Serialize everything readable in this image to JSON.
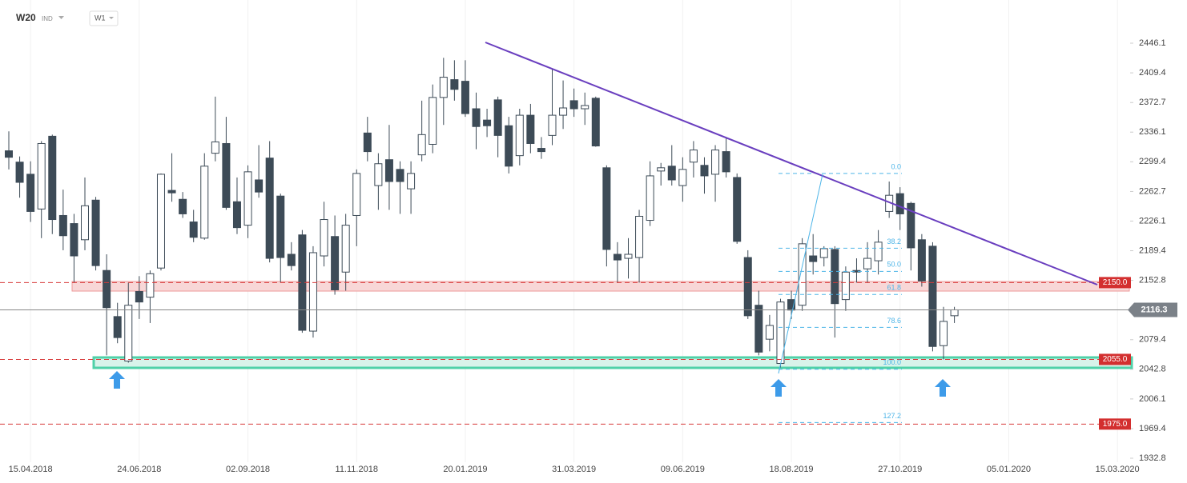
{
  "header": {
    "symbol": "W20",
    "market": "IND",
    "interval": "W1"
  },
  "chart_data": {
    "type": "candlestick",
    "categories": [
      null,
      null,
      "15.04.2018",
      null,
      null,
      null,
      null,
      null,
      null,
      null,
      null,
      null,
      "24.06.2018",
      null,
      null,
      null,
      null,
      null,
      null,
      null,
      null,
      null,
      "02.09.2018",
      null,
      null,
      null,
      null,
      null,
      null,
      null,
      null,
      null,
      "11.11.2018",
      null,
      null,
      null,
      null,
      null,
      null,
      null,
      null,
      null,
      "20.01.2019",
      null,
      null,
      null,
      null,
      null,
      null,
      null,
      null,
      null,
      "31.03.2019",
      null,
      null,
      null,
      null,
      null,
      null,
      null,
      null,
      null,
      "09.06.2019",
      null,
      null,
      null,
      null,
      null,
      null,
      null,
      null,
      null,
      "18.08.2019",
      null,
      null,
      null,
      null,
      null,
      null,
      null,
      null,
      null,
      "27.10.2019",
      null,
      null,
      null,
      null,
      null,
      null,
      null,
      null,
      null,
      "05.01.2020",
      null,
      null,
      null,
      null,
      null,
      null,
      null,
      null,
      null,
      "15.03.2020",
      null
    ],
    "open": [
      2313,
      2299,
      2284,
      2241,
      2331,
      2233,
      2223,
      2203,
      2252,
      2165,
      2108,
      2053,
      2139,
      2132,
      2168,
      2264,
      2253,
      2225,
      2205,
      2310,
      2322,
      2250,
      2221,
      2277,
      2304,
      2257,
      2185,
      2209,
      2090,
      2183,
      2207,
      2163,
      2233,
      2335,
      2270,
      2302,
      2290,
      2266,
      2308,
      2321,
      2379,
      2401,
      2399,
      2365,
      2351,
      2376,
      2344,
      2307,
      2357,
      2316,
      2332,
      2357,
      2375,
      2365,
      2378,
      2292,
      2185,
      2180,
      2181,
      2227,
      2288,
      2294,
      2270,
      2299,
      2295,
      2284,
      2312,
      2280,
      2181,
      2122,
      2080,
      2050,
      2129,
      2122,
      2183,
      2181,
      2191,
      2129,
      2165,
      2167,
      2177,
      2238,
      2260,
      2248,
      2203,
      2195,
      2072,
      2109,
      null,
      null,
      null,
      null,
      null,
      null,
      null,
      null,
      null,
      null,
      null,
      null,
      null,
      null,
      null,
      null
    ],
    "high": [
      2337,
      2306,
      2300,
      2325,
      2333,
      2265,
      2235,
      2280,
      2256,
      2185,
      2125,
      2150,
      2158,
      2165,
      2285,
      2310,
      2262,
      2240,
      2310,
      2380,
      2355,
      2280,
      2295,
      2320,
      2325,
      2260,
      2200,
      2215,
      2195,
      2250,
      2233,
      2235,
      2290,
      2355,
      2310,
      2345,
      2300,
      2300,
      2375,
      2395,
      2428,
      2425,
      2425,
      2385,
      2365,
      2380,
      2355,
      2365,
      2371,
      2330,
      2415,
      2400,
      2390,
      2385,
      2380,
      2295,
      2200,
      2205,
      2240,
      2300,
      2298,
      2320,
      2305,
      2325,
      2305,
      2320,
      2330,
      2285,
      2190,
      2140,
      2110,
      2130,
      2140,
      2205,
      2210,
      2195,
      2195,
      2170,
      2180,
      2200,
      2215,
      2275,
      2268,
      2250,
      2210,
      2200,
      2120,
      2120,
      null,
      null,
      null,
      null,
      null,
      null,
      null,
      null,
      null,
      null,
      null,
      null,
      null,
      null,
      null,
      null
    ],
    "low": [
      2290,
      2255,
      2225,
      2205,
      2210,
      2190,
      2150,
      2190,
      2165,
      2060,
      2075,
      2051,
      2105,
      2100,
      2165,
      2250,
      2230,
      2200,
      2203,
      2300,
      2240,
      2210,
      2205,
      2255,
      2175,
      2150,
      2165,
      2088,
      2082,
      2170,
      2135,
      2140,
      2195,
      2300,
      2240,
      2240,
      2235,
      2235,
      2300,
      2310,
      2345,
      2375,
      2355,
      2315,
      2330,
      2305,
      2285,
      2295,
      2310,
      2303,
      2320,
      2340,
      2355,
      2345,
      2318,
      2170,
      2150,
      2155,
      2150,
      2220,
      2270,
      2270,
      2250,
      2280,
      2260,
      2250,
      2280,
      2198,
      2105,
      2060,
      2065,
      2045,
      2105,
      2115,
      2160,
      2170,
      2082,
      2115,
      2150,
      2150,
      2160,
      2230,
      2215,
      2165,
      2145,
      2065,
      2055,
      2100,
      null,
      null,
      null,
      null,
      null,
      null,
      null,
      null,
      null,
      null,
      null,
      null,
      null,
      null,
      null,
      null
    ],
    "close": [
      2305,
      2274,
      2238,
      2322,
      2228,
      2208,
      2183,
      2245,
      2171,
      2119,
      2082,
      2122,
      2126,
      2161,
      2284,
      2261,
      2235,
      2206,
      2294,
      2324,
      2243,
      2218,
      2287,
      2262,
      2180,
      2181,
      2171,
      2091,
      2187,
      2228,
      2141,
      2221,
      2285,
      2312,
      2297,
      2275,
      2275,
      2285,
      2333,
      2379,
      2404,
      2389,
      2359,
      2343,
      2344,
      2332,
      2294,
      2357,
      2322,
      2312,
      2357,
      2366,
      2365,
      2369,
      2319,
      2191,
      2178,
      2185,
      2232,
      2282,
      2292,
      2277,
      2290,
      2314,
      2282,
      2314,
      2287,
      2201,
      2109,
      2064,
      2097,
      2126,
      2116,
      2198,
      2176,
      2192,
      2124,
      2163,
      2163,
      2180,
      2200,
      2258,
      2235,
      2193,
      2152,
      2071,
      2102,
      2116.3,
      null,
      null,
      null,
      null,
      null,
      null,
      null,
      null,
      null,
      null,
      null,
      null,
      null,
      null,
      null,
      null
    ],
    "up_color": "#ffffff",
    "down_color": "#3d4b57",
    "ylim": [
      1932.8,
      2446.1
    ],
    "yticks": [
      1932.8,
      1969.4,
      2006.1,
      2042.8,
      2079.4,
      2152.8,
      2189.4,
      2226.1,
      2262.7,
      2299.4,
      2336.1,
      2372.7,
      2409.4,
      2446.1
    ],
    "current_price": 2116.3,
    "levels": [
      {
        "value": 2150,
        "label": "2150.0"
      },
      {
        "value": 2055,
        "label": "2055.0"
      },
      {
        "value": 1975,
        "label": "1975.0"
      }
    ],
    "fib": [
      {
        "value": 2285,
        "label": "0.0"
      },
      {
        "value": 2192.5,
        "label": "38.2"
      },
      {
        "value": 2163.9,
        "label": "50.0"
      },
      {
        "value": 2135.3,
        "label": "61.8"
      },
      {
        "value": 2094.6,
        "label": "78.6"
      },
      {
        "value": 2042.8,
        "label": "100.0"
      },
      {
        "value": 1976.9,
        "label": "127.2"
      }
    ]
  }
}
